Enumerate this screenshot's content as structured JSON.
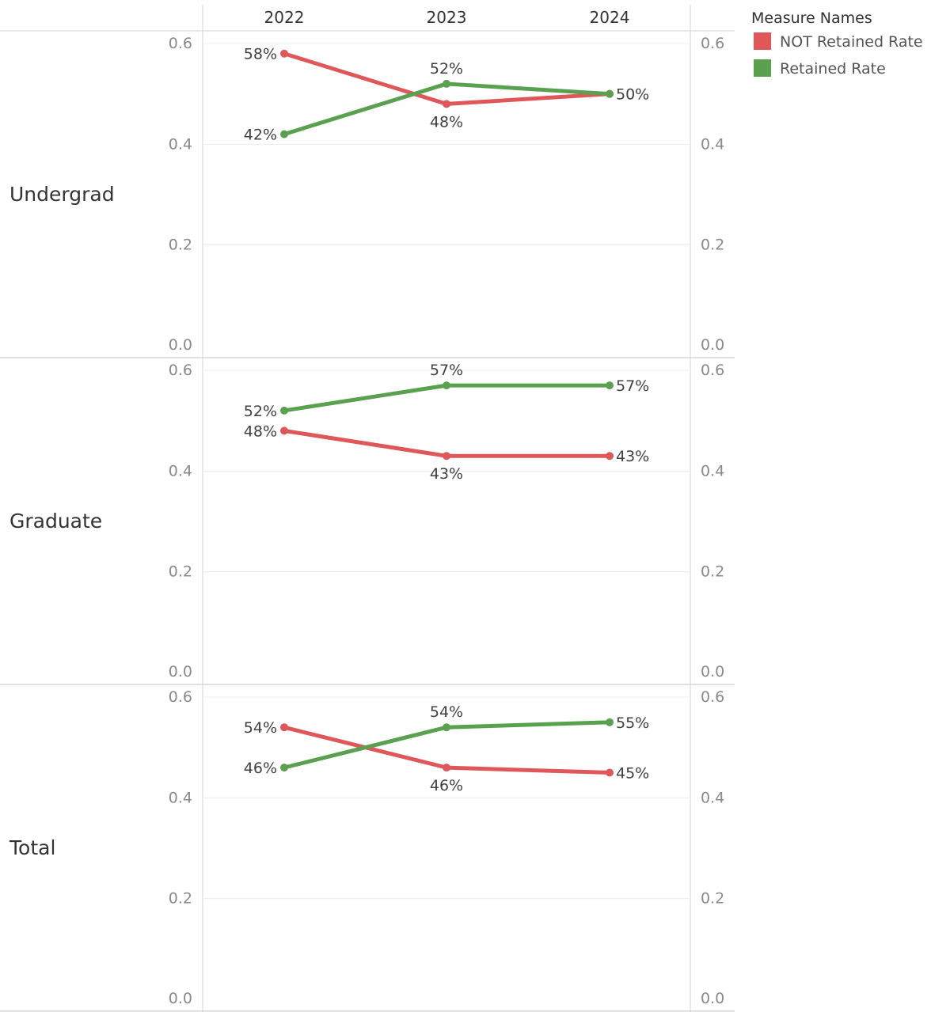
{
  "chart_data": {
    "type": "line",
    "categories": [
      "2022",
      "2023",
      "2024"
    ],
    "ylim": [
      0,
      0.6
    ],
    "yticks": [
      "0.0",
      "0.2",
      "0.4",
      "0.6"
    ],
    "grid": true,
    "legend_position": "top-right",
    "legend": {
      "title": "Measure Names",
      "items": [
        {
          "name": "NOT Retained Rate",
          "color": "#e05759"
        },
        {
          "name": "Retained Rate",
          "color": "#59a14f"
        }
      ]
    },
    "panels": [
      {
        "row_label": "Undergrad",
        "series": [
          {
            "name": "NOT Retained Rate",
            "color": "#e05759",
            "values": [
              0.58,
              0.48,
              0.5
            ],
            "labels": [
              "58%",
              "48%",
              "50%"
            ]
          },
          {
            "name": "Retained Rate",
            "color": "#59a14f",
            "values": [
              0.42,
              0.52,
              0.5
            ],
            "labels": [
              "42%",
              "52%",
              ""
            ]
          }
        ]
      },
      {
        "row_label": "Graduate",
        "series": [
          {
            "name": "NOT Retained Rate",
            "color": "#e05759",
            "values": [
              0.48,
              0.43,
              0.43
            ],
            "labels": [
              "48%",
              "43%",
              "43%"
            ]
          },
          {
            "name": "Retained Rate",
            "color": "#59a14f",
            "values": [
              0.52,
              0.57,
              0.57
            ],
            "labels": [
              "52%",
              "57%",
              "57%"
            ]
          }
        ]
      },
      {
        "row_label": "Total",
        "series": [
          {
            "name": "NOT Retained Rate",
            "color": "#e05759",
            "values": [
              0.54,
              0.46,
              0.45
            ],
            "labels": [
              "54%",
              "46%",
              "45%"
            ]
          },
          {
            "name": "Retained Rate",
            "color": "#59a14f",
            "values": [
              0.46,
              0.54,
              0.55
            ],
            "labels": [
              "46%",
              "54%",
              "55%"
            ]
          }
        ]
      }
    ]
  }
}
